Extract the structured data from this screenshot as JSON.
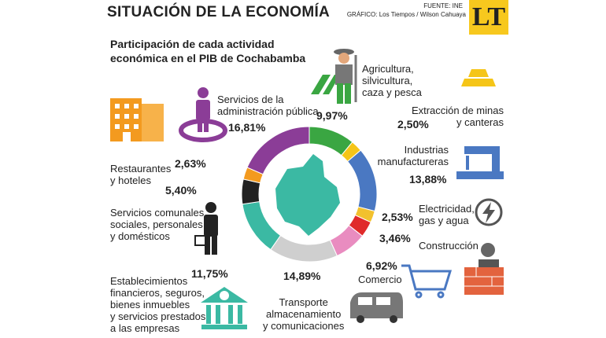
{
  "chart_data": {
    "type": "donut",
    "title": "SITUACIÓN DE LA ECONOMÍA",
    "source": "FUENTE: INE",
    "credit": "GRÁFICO: Los Tiempos / Wilson Cahuaya",
    "subtitle": "Participación de cada actividad\neconómica en el PIB de Cochabamba",
    "logo": "LT",
    "categories": [
      "Agricultura,\nsilvicultura,\ncaza y pesca",
      "Extracción de minas\ny canteras",
      "Industrias\nmanufactureras",
      "Electricidad,\ngas y agua",
      "Construcción",
      "Comercio",
      "Transporte\nalmacenamiento\ny comunicaciones",
      "Establecimientos\nfinancieros, seguros,\nbienes inmuebles\ny servicios prestados\na las empresas",
      "Servicios comunales\nsociales, personales\ny domésticos",
      "Restaurantes\ny hoteles",
      "Servicios de la\nadministración pública"
    ],
    "values": [
      9.97,
      2.5,
      13.88,
      2.53,
      3.46,
      6.92,
      14.89,
      11.75,
      5.4,
      2.63,
      16.81
    ],
    "value_labels": [
      "9,97%",
      "2,50%",
      "13,88%",
      "2,53%",
      "3,46%",
      "6,92%",
      "14,89%",
      "11,75%",
      "5,40%",
      "2,63%",
      "16,81%"
    ],
    "colors": [
      "#3aa642",
      "#f5c518",
      "#4a78c2",
      "#f2c12e",
      "#e02a2a",
      "#e98cc0",
      "#cfcfcf",
      "#3bb9a3",
      "#222222",
      "#f39a1f",
      "#8b3d97"
    ]
  }
}
